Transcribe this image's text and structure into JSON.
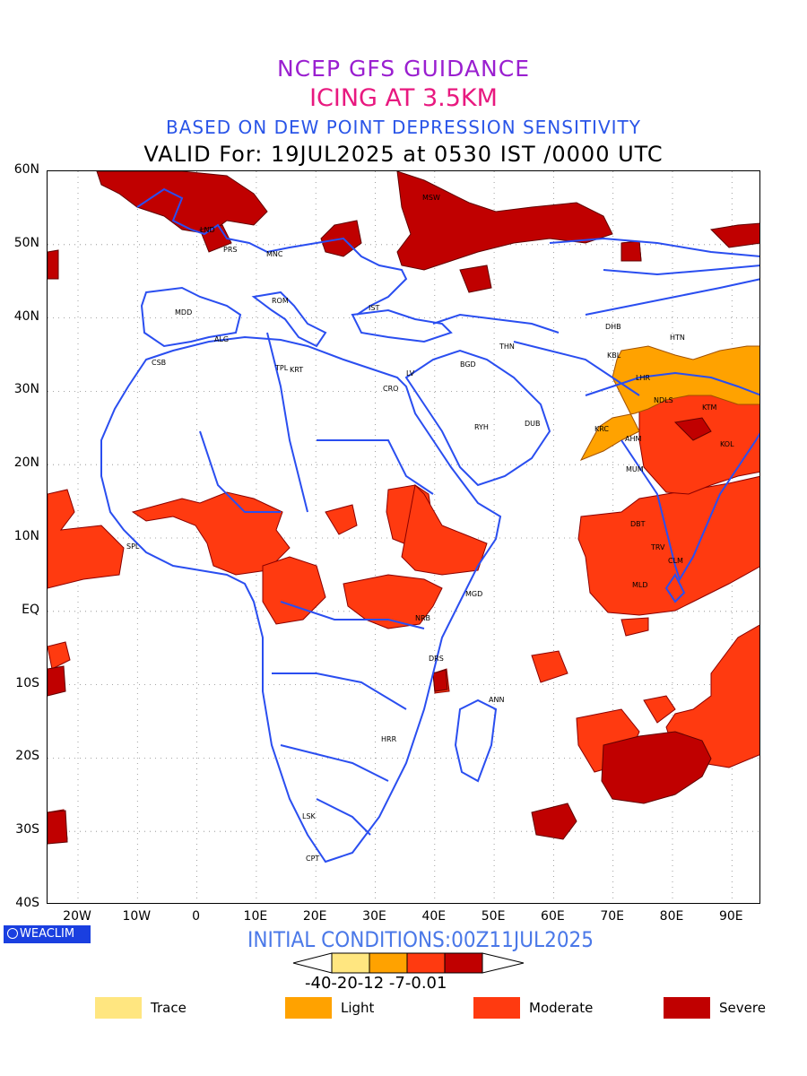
{
  "header": {
    "line1": "NCEP GFS GUIDANCE",
    "line1_color": "#9a1fd0",
    "line2": "ICING AT 3.5KM",
    "line2_color": "#e8197f",
    "line3": "BASED ON DEW POINT DEPRESSION SENSITIVITY",
    "line3_color": "#2a55e8",
    "line4": "VALID For: 19JUL2025 at 0530 IST /0000 UTC"
  },
  "map": {
    "lat_labels": [
      "60N",
      "50N",
      "40N",
      "30N",
      "20N",
      "10N",
      "EQ",
      "10S",
      "20S",
      "30S",
      "40S"
    ],
    "lon_labels": [
      "20W",
      "10W",
      "0",
      "10E",
      "20E",
      "30E",
      "40E",
      "50E",
      "60E",
      "70E",
      "80E",
      "90E"
    ],
    "boundary_color": "#2a4ef0",
    "stations": [
      "MSW",
      "LND",
      "PRS",
      "MNC",
      "ROM",
      "IST",
      "MDD",
      "ALG",
      "CSB",
      "TPL",
      "KRT",
      "CRO",
      "LV",
      "BGD",
      "THN",
      "RYH",
      "DUB",
      "DHB",
      "HTN",
      "KBL",
      "LHR",
      "NDLS",
      "KTM",
      "KRC",
      "AHM",
      "KOL",
      "MUM",
      "DBT",
      "TRV",
      "CLM",
      "MLD",
      "SPL",
      "MGD",
      "NRB",
      "DRS",
      "ANN",
      "HRR",
      "LSK",
      "CPT"
    ]
  },
  "brand": "WEACLIM",
  "initial_conditions": "INITIAL CONDITIONS:00Z11JUL2025",
  "colorbar": {
    "ticks": "-40-20-12 -7-0.01",
    "colors": [
      "#ffe680",
      "#ffa200",
      "#ff3a10",
      "#c00000"
    ]
  },
  "legend": [
    {
      "label": "Trace",
      "color": "#ffe680"
    },
    {
      "label": "Light",
      "color": "#ffa200"
    },
    {
      "label": "Moderate",
      "color": "#ff3a10"
    },
    {
      "label": "Severe",
      "color": "#c00000"
    }
  ]
}
